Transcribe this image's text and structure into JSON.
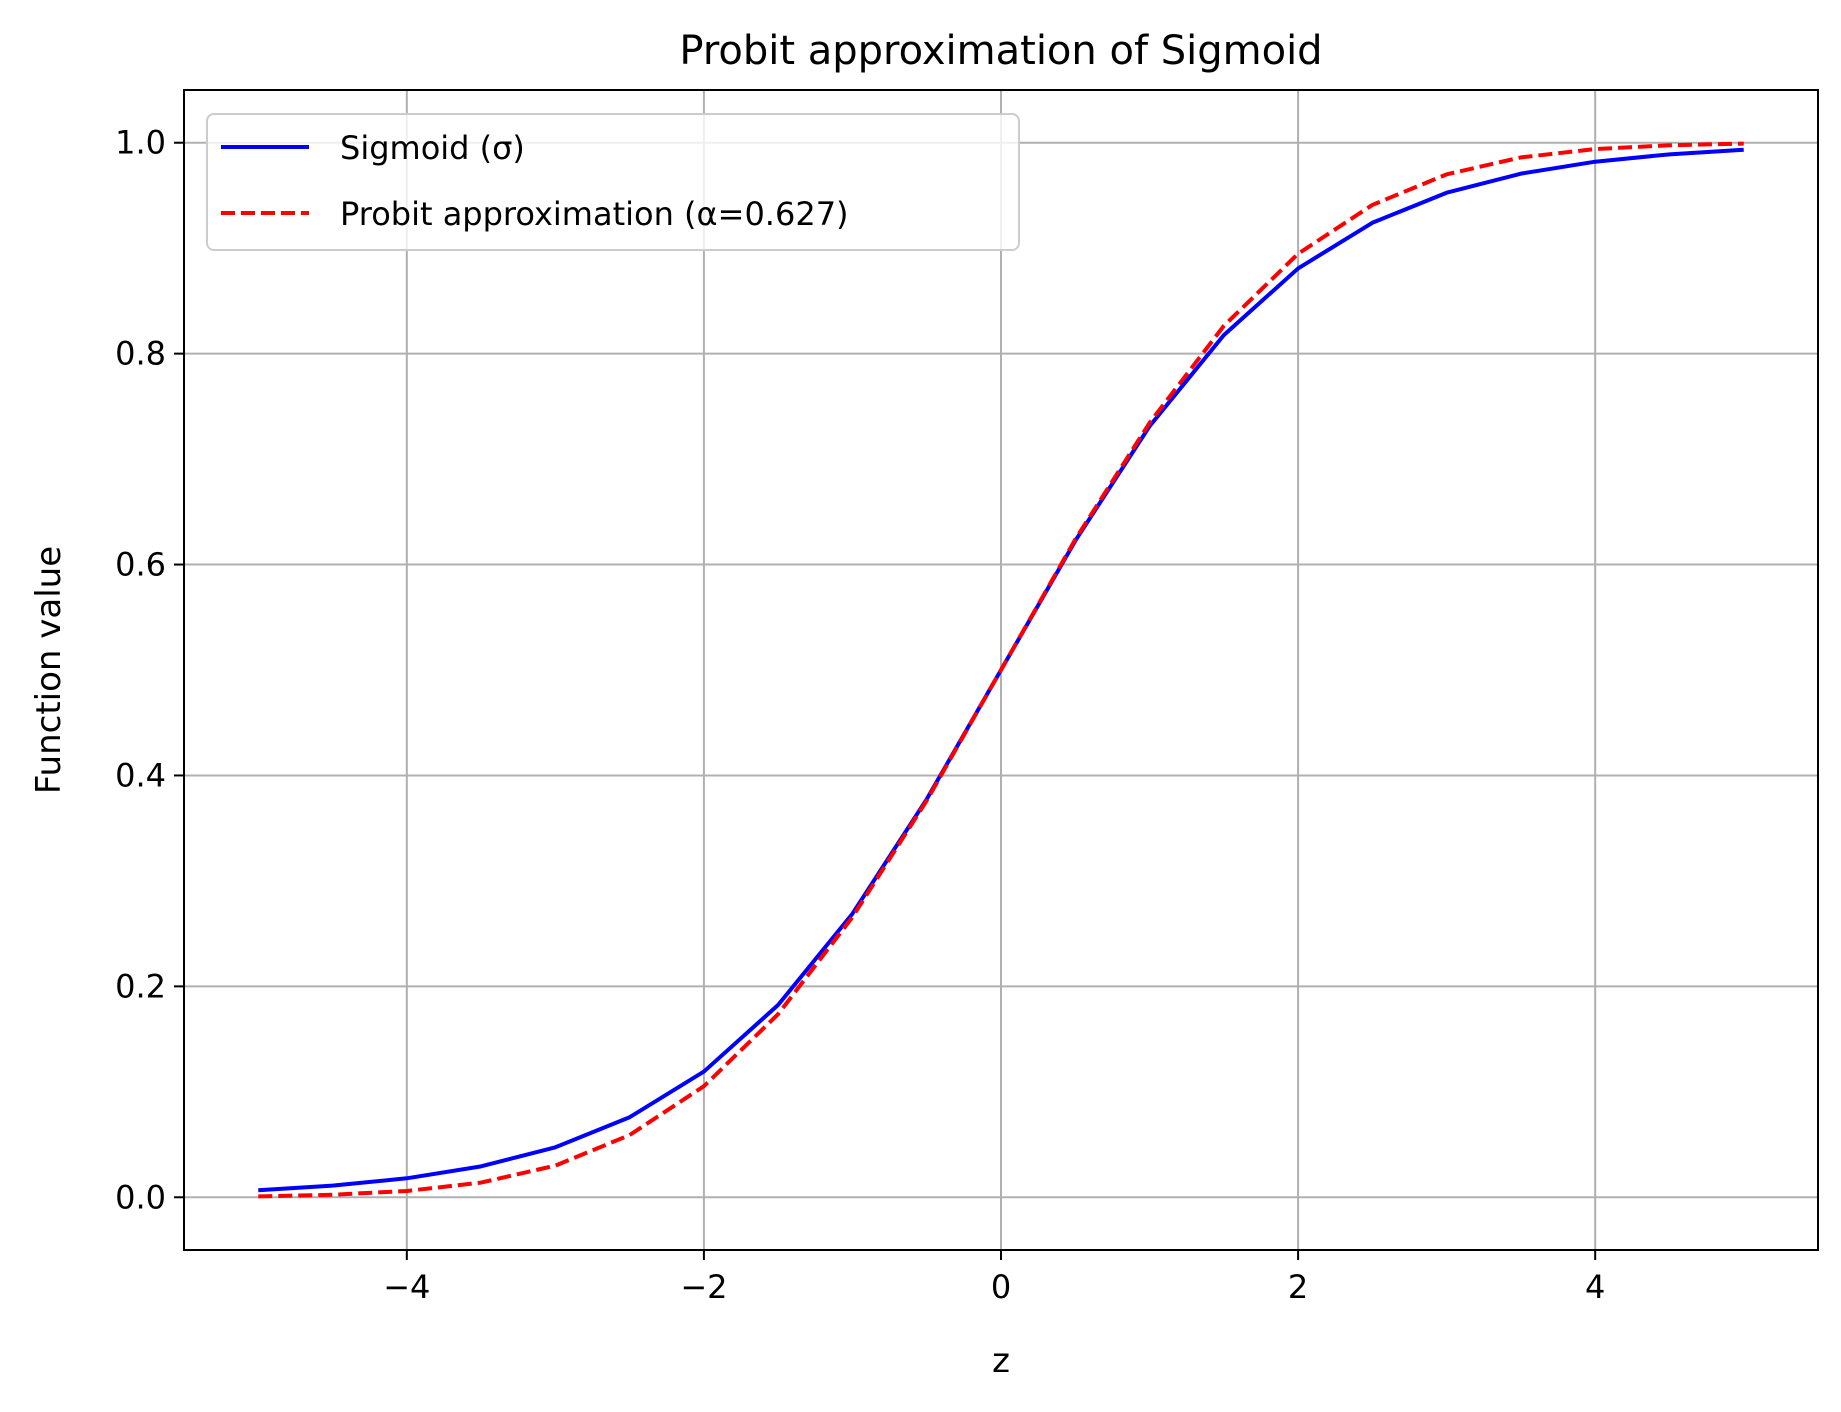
{
  "chart_data": {
    "type": "line",
    "title": "Probit approximation of Sigmoid",
    "xlabel": "z",
    "ylabel": "Function value",
    "xlim": [
      -5.5,
      5.5
    ],
    "ylim": [
      -0.05,
      1.05
    ],
    "grid": true,
    "legend_position": "top-left",
    "x_ticks": [
      {
        "value": -4,
        "label": "−4"
      },
      {
        "value": -2,
        "label": "−2"
      },
      {
        "value": 0,
        "label": "0"
      },
      {
        "value": 2,
        "label": "2"
      },
      {
        "value": 4,
        "label": "4"
      }
    ],
    "y_ticks": [
      {
        "value": 0.0,
        "label": "0.0"
      },
      {
        "value": 0.2,
        "label": "0.2"
      },
      {
        "value": 0.4,
        "label": "0.4"
      },
      {
        "value": 0.6,
        "label": "0.6"
      },
      {
        "value": 0.8,
        "label": "0.8"
      },
      {
        "value": 1.0,
        "label": "1.0"
      }
    ],
    "x": [
      -5,
      -4.5,
      -4,
      -3.5,
      -3,
      -2.5,
      -2,
      -1.5,
      -1,
      -0.5,
      0,
      0.5,
      1,
      1.5,
      2,
      2.5,
      3,
      3.5,
      4,
      4.5,
      5
    ],
    "series": [
      {
        "name": "Sigmoid (σ)",
        "color": "#0000ff",
        "style": "solid",
        "values": [
          0.0067,
          0.011,
          0.018,
          0.0293,
          0.0474,
          0.0759,
          0.1192,
          0.1824,
          0.2689,
          0.3775,
          0.5,
          0.6225,
          0.7311,
          0.8176,
          0.8808,
          0.9241,
          0.9526,
          0.9707,
          0.982,
          0.989,
          0.9933
        ]
      },
      {
        "name": "Probit approximation (α=0.627)",
        "color": "#ff0000",
        "style": "dashed",
        "values": [
          0.0008,
          0.0024,
          0.006,
          0.0139,
          0.03,
          0.059,
          0.1053,
          0.1737,
          0.2657,
          0.3762,
          0.5,
          0.6238,
          0.7343,
          0.8263,
          0.8947,
          0.941,
          0.97,
          0.9861,
          0.994,
          0.9976,
          0.9992
        ]
      }
    ]
  }
}
